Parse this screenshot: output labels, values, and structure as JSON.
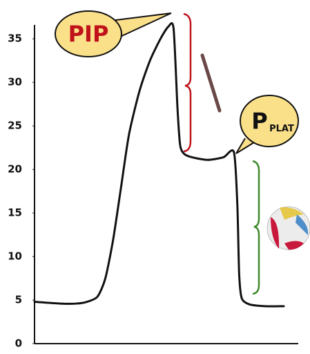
{
  "chart_data": {
    "type": "line",
    "x": [
      0,
      10,
      16,
      20,
      24,
      27,
      30,
      33,
      36,
      40,
      44,
      48,
      51,
      53,
      54.5,
      55.5,
      57,
      60,
      66,
      72,
      76,
      77.3,
      78,
      79,
      82,
      88,
      95
    ],
    "series": [
      {
        "color": "#111111",
        "values": [
          4.8,
          4.6,
          4.6,
          4.8,
          5.4,
          7.5,
          12,
          18,
          24,
          29,
          32.5,
          35,
          36.4,
          36.2,
          27,
          22.8,
          21.8,
          21.4,
          21.1,
          21.4,
          22,
          16,
          8,
          5.2,
          4.5,
          4.3,
          4.3
        ]
      }
    ],
    "xlim": [
      0,
      100
    ],
    "ylim": [
      0,
      37
    ],
    "yticks": [
      0,
      5,
      10,
      15,
      20,
      25,
      30,
      35
    ],
    "grid": false,
    "annotations": [
      "PIP",
      "P",
      "PLAT"
    ]
  }
}
